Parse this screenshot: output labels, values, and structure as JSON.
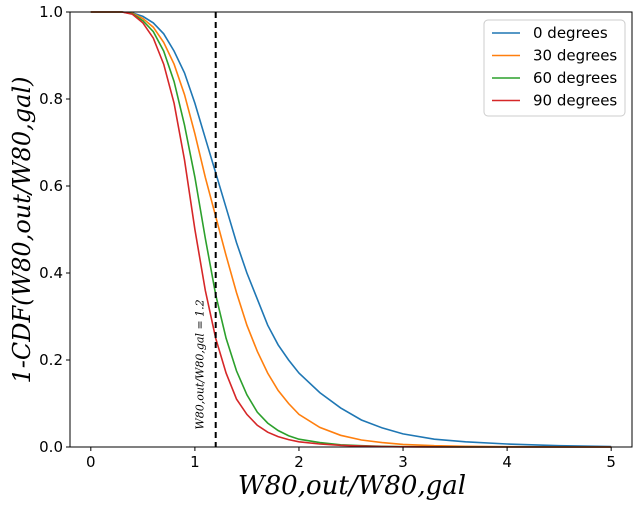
{
  "chart_data": {
    "type": "line",
    "xlabel": "W80,out/W80,gal",
    "ylabel": "1-CDF(W80,out/W80,gal)",
    "xlim": [
      -0.2,
      5.2
    ],
    "ylim": [
      0,
      1
    ],
    "xticks": [
      "0",
      "1",
      "2",
      "3",
      "4",
      "5"
    ],
    "yticks": [
      "0.0",
      "0.2",
      "0.4",
      "0.6",
      "0.8",
      "1.0"
    ],
    "legend_position": "top-right",
    "grid": false,
    "annotation": {
      "label": "W80,out/W80,gal = 1.2",
      "x": 1.2,
      "style": "dashed vertical line"
    },
    "x": [
      0,
      0.3,
      0.4,
      0.5,
      0.6,
      0.7,
      0.8,
      0.9,
      1.0,
      1.1,
      1.2,
      1.3,
      1.4,
      1.5,
      1.6,
      1.7,
      1.8,
      1.9,
      2.0,
      2.2,
      2.4,
      2.6,
      2.8,
      3.0,
      3.3,
      3.6,
      4.0,
      4.5,
      5.0
    ],
    "series": [
      {
        "name": "0 degrees",
        "color": "#1f77b4",
        "values": [
          1.0,
          1.0,
          0.998,
          0.99,
          0.975,
          0.95,
          0.91,
          0.86,
          0.79,
          0.71,
          0.63,
          0.55,
          0.47,
          0.4,
          0.34,
          0.28,
          0.235,
          0.2,
          0.17,
          0.125,
          0.09,
          0.062,
          0.044,
          0.03,
          0.018,
          0.012,
          0.007,
          0.003,
          0.001
        ]
      },
      {
        "name": "30 degrees",
        "color": "#ff7f0e",
        "values": [
          1.0,
          1.0,
          0.997,
          0.985,
          0.965,
          0.93,
          0.88,
          0.81,
          0.72,
          0.62,
          0.53,
          0.44,
          0.355,
          0.28,
          0.22,
          0.17,
          0.13,
          0.1,
          0.075,
          0.045,
          0.027,
          0.016,
          0.01,
          0.006,
          0.003,
          0.0015,
          0.0008,
          0.0003,
          0.0
        ]
      },
      {
        "name": "60 degrees",
        "color": "#2ca02c",
        "values": [
          1.0,
          1.0,
          0.996,
          0.98,
          0.955,
          0.91,
          0.84,
          0.74,
          0.62,
          0.48,
          0.35,
          0.25,
          0.175,
          0.12,
          0.08,
          0.055,
          0.038,
          0.026,
          0.018,
          0.01,
          0.005,
          0.003,
          0.0015,
          0.0008,
          0.0004,
          0.0002,
          0.0001,
          0.0,
          0.0
        ]
      },
      {
        "name": "90 degrees",
        "color": "#d62728",
        "values": [
          1.0,
          1.0,
          0.995,
          0.975,
          0.94,
          0.88,
          0.79,
          0.66,
          0.5,
          0.36,
          0.25,
          0.17,
          0.11,
          0.075,
          0.05,
          0.034,
          0.024,
          0.017,
          0.012,
          0.007,
          0.004,
          0.002,
          0.001,
          0.0005,
          0.0003,
          0.0001,
          0.0,
          0.0,
          0.0
        ]
      }
    ]
  }
}
